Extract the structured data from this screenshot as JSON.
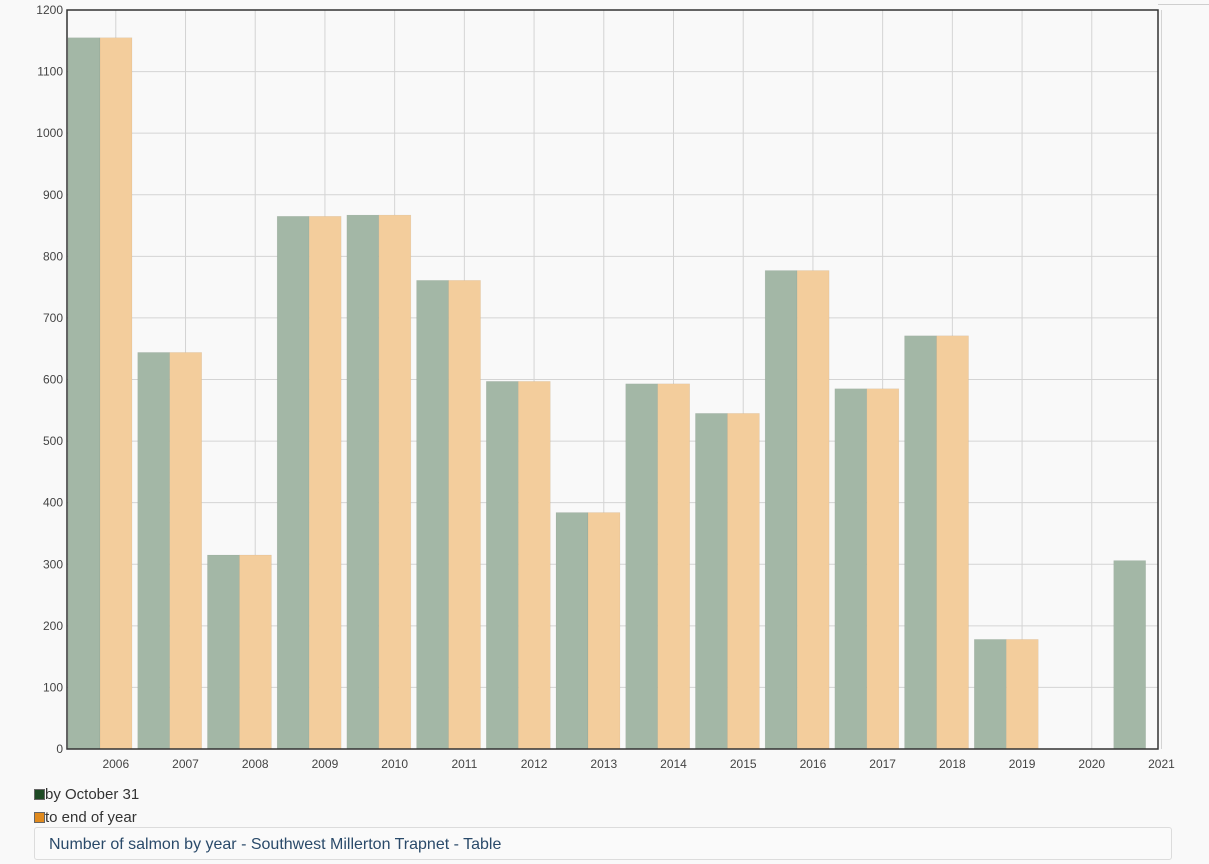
{
  "chart_data": {
    "type": "bar",
    "categories": [
      "2006",
      "2007",
      "2008",
      "2009",
      "2010",
      "2011",
      "2012",
      "2013",
      "2014",
      "2015",
      "2016",
      "2017",
      "2018",
      "2019",
      "2020",
      "2021"
    ],
    "series": [
      {
        "name": "by October 31",
        "color": "#a3b7a6",
        "values": [
          1155,
          644,
          315,
          865,
          867,
          761,
          597,
          384,
          593,
          545,
          777,
          585,
          671,
          178,
          null,
          306
        ]
      },
      {
        "name": "to end of year",
        "color": "#f3cd9c",
        "values": [
          1155,
          644,
          315,
          865,
          867,
          761,
          597,
          384,
          593,
          545,
          777,
          585,
          671,
          178,
          null,
          null
        ]
      }
    ],
    "y_ticks": [
      0,
      100,
      200,
      300,
      400,
      500,
      600,
      700,
      800,
      900,
      1000,
      1100,
      1200
    ],
    "x_tick_labels": [
      "2006",
      "2007",
      "2008",
      "2009",
      "2010",
      "2011",
      "2012",
      "2013",
      "2014",
      "2015",
      "2016",
      "2017",
      "2018",
      "2019",
      "2020",
      "2021"
    ],
    "ylim": [
      0,
      1200
    ],
    "grid": true,
    "legend_position": "bottom-left"
  },
  "legend": [
    {
      "label": "by October 31",
      "swatch_color": "#1e4a24"
    },
    {
      "label": "to end of year",
      "swatch_color": "#e08a1e"
    }
  ],
  "table_link": {
    "label": "Number of salmon by year - Southwest Millerton Trapnet - Table"
  }
}
